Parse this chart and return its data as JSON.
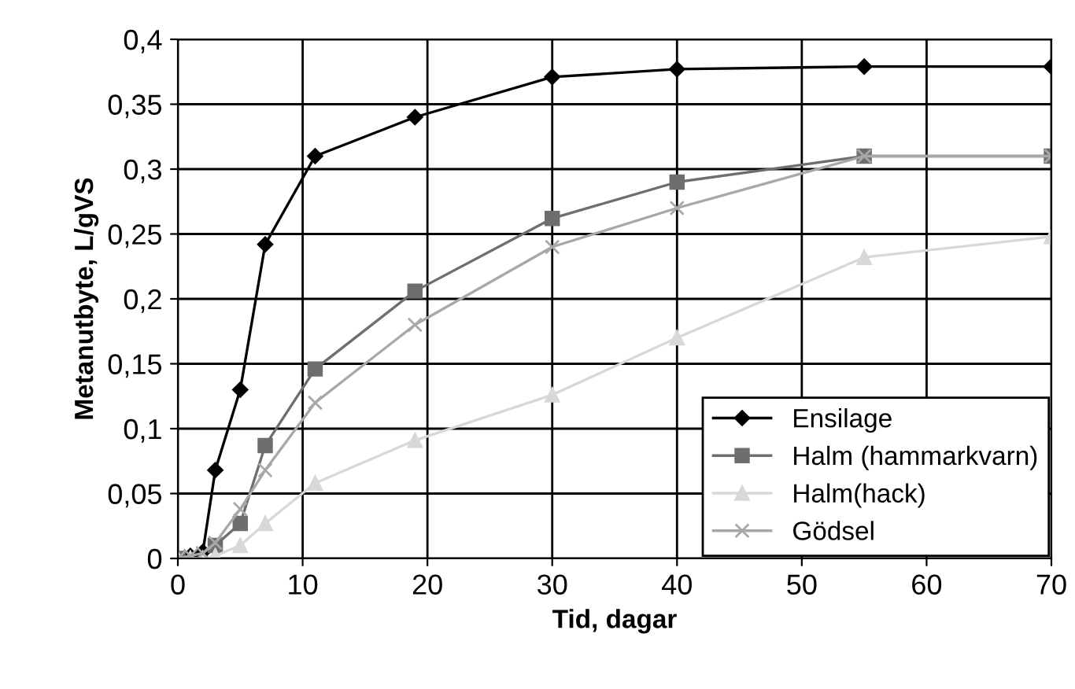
{
  "chart_data": {
    "type": "line",
    "xlabel": "Tid, dagar",
    "ylabel": "Metanutbyte, L/gVS",
    "x": [
      0,
      1,
      2,
      3,
      5,
      7,
      11,
      19,
      30,
      40,
      55,
      70
    ],
    "series": [
      {
        "name": "Ensilage",
        "color": "#000000",
        "marker": "diamond",
        "values": [
          0,
          0.002,
          0.005,
          0.068,
          0.13,
          0.242,
          0.31,
          0.34,
          0.371,
          0.377,
          0.379,
          0.379
        ]
      },
      {
        "name": "Halm (hammarkvarn)",
        "color": "#6e6e6e",
        "marker": "square",
        "values": [
          0,
          null,
          null,
          0.01,
          0.027,
          0.087,
          0.146,
          0.206,
          0.262,
          0.29,
          0.31,
          0.31
        ]
      },
      {
        "name": "Halm(hack)",
        "color": "#d8d8d8",
        "marker": "triangle",
        "values": [
          0,
          0,
          0,
          0.002,
          0.01,
          0.027,
          0.058,
          0.091,
          0.126,
          0.17,
          0.232,
          0.248
        ]
      },
      {
        "name": "Gödsel",
        "color": "#a8a8a8",
        "marker": "cross",
        "values": [
          0,
          0.002,
          0.004,
          0.012,
          0.038,
          0.068,
          0.12,
          0.18,
          0.24,
          0.27,
          0.31,
          0.31
        ]
      }
    ],
    "xlim": [
      0,
      70
    ],
    "xticks": [
      0,
      10,
      20,
      30,
      40,
      50,
      60,
      70
    ],
    "ylim": [
      0,
      0.4
    ],
    "yticks": [
      {
        "value": 0,
        "label": "0"
      },
      {
        "value": 0.05,
        "label": "0,05"
      },
      {
        "value": 0.1,
        "label": "0,1"
      },
      {
        "value": 0.15,
        "label": "0,15"
      },
      {
        "value": 0.2,
        "label": "0,2"
      },
      {
        "value": 0.25,
        "label": "0,25"
      },
      {
        "value": 0.3,
        "label": "0,3"
      },
      {
        "value": 0.35,
        "label": "0,35"
      },
      {
        "value": 0.4,
        "label": "0,4"
      }
    ],
    "grid": true,
    "legend": "bottom right",
    "line_style": "solid"
  }
}
